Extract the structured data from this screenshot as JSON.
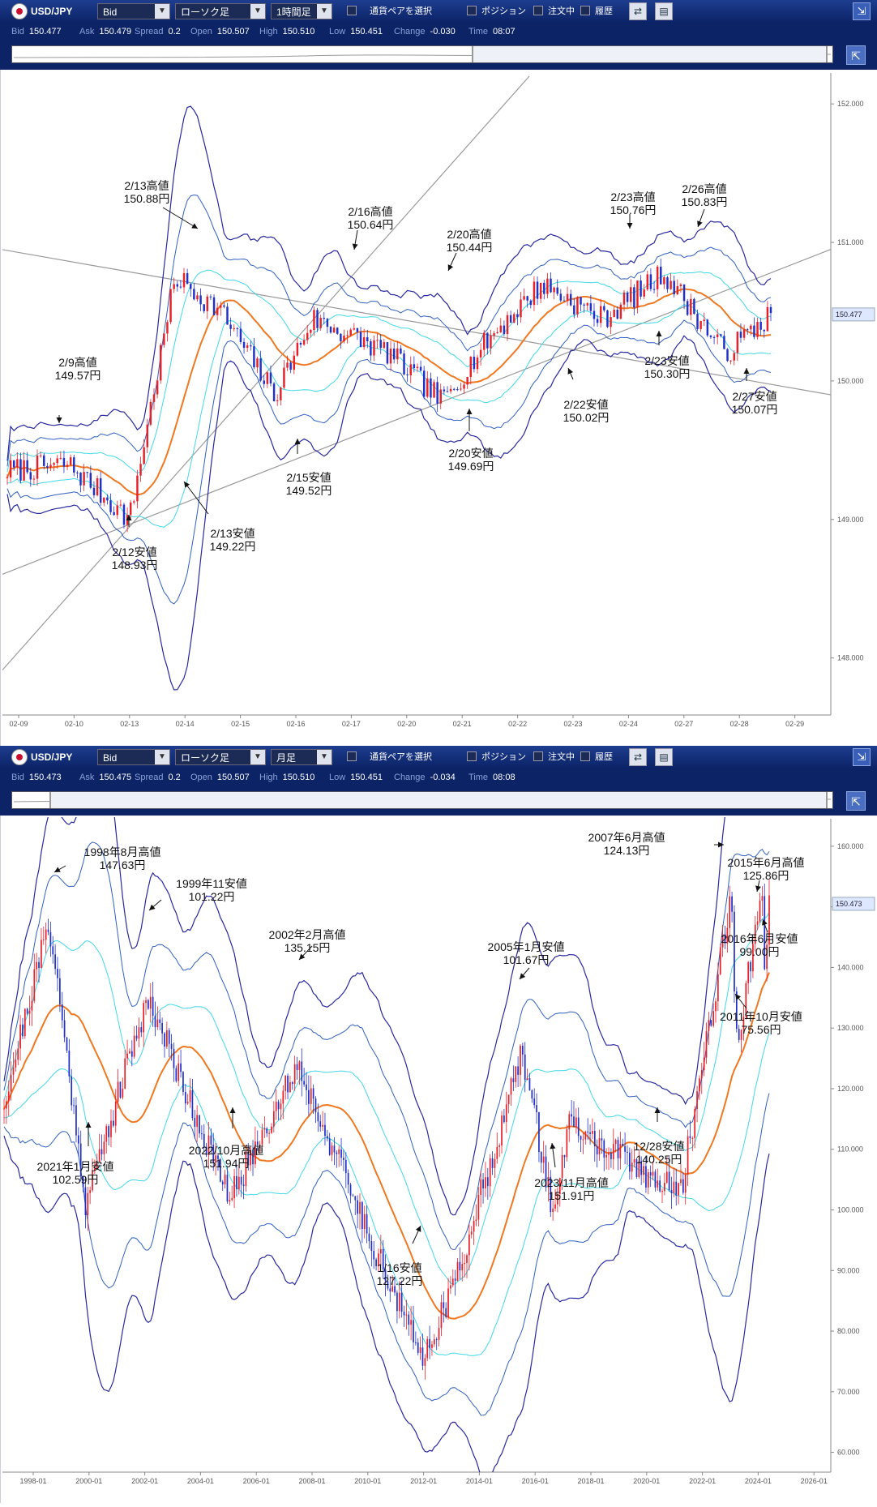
{
  "panels": [
    {
      "toolbar": {
        "pair": "USD/JPY",
        "price_type": "Bid",
        "chart_style": "ローソク足",
        "timeframe": "1時間足",
        "select_pairs": "通貨ペアを選択",
        "position": "ポジション",
        "orders": "注文中",
        "history": "履歴"
      },
      "status": {
        "bid_label": "Bid",
        "bid": "150.477",
        "ask_label": "Ask",
        "ask": "150.479",
        "spread_label": "Spread",
        "spread": "0.2",
        "open_label": "Open",
        "open": "150.507",
        "high_label": "High",
        "high": "150.510",
        "low_label": "Low",
        "low": "150.451",
        "change_label": "Change",
        "change": "-0.030",
        "time_label": "Time",
        "time": "08:07"
      },
      "navigator_thumb": [
        0.56,
        0.99
      ],
      "current_price": "150.477"
    },
    {
      "toolbar": {
        "pair": "USD/JPY",
        "price_type": "Bid",
        "chart_style": "ローソク足",
        "timeframe": "月足",
        "select_pairs": "通貨ペアを選択",
        "position": "ポジション",
        "orders": "注文中",
        "history": "履歴"
      },
      "status": {
        "bid_label": "Bid",
        "bid": "150.473",
        "ask_label": "Ask",
        "ask": "150.475",
        "spread_label": "Spread",
        "spread": "0.2",
        "open_label": "Open",
        "open": "150.507",
        "high_label": "High",
        "high": "150.510",
        "low_label": "Low",
        "low": "150.451",
        "change_label": "Change",
        "change": "-0.034",
        "time_label": "Time",
        "time": "08:08"
      },
      "navigator_thumb": [
        0.045,
        0.99
      ],
      "current_price": "150.473"
    }
  ],
  "chart_data": [
    {
      "type": "candlestick",
      "title": "",
      "xlabel": "",
      "ylabel": "",
      "x_ticks": [
        "02-09",
        "02-10",
        "02-13",
        "02-14",
        "02-15",
        "02-16",
        "02-17",
        "02-20",
        "02-21",
        "02-22",
        "02-23",
        "02-24",
        "02-27",
        "02-28",
        "02-29"
      ],
      "y_ticks": [
        "148.000",
        "149.000",
        "150.000",
        "151.000",
        "152.000"
      ],
      "ylim": [
        147.6,
        152.2
      ],
      "indicators": [
        "Bollinger Bands (±1σ, ±2σ, ±3σ)",
        "Moving Average"
      ],
      "colors": {
        "up": "#e8202a",
        "down": "#2030c8",
        "ma": "#f07820",
        "band1": "#40d8e8",
        "band2": "#3060c0",
        "band3": "#2828a0",
        "trend": "#999999"
      },
      "series": [
        {
          "name": "",
          "t": [
            0,
            0.08,
            0.16,
            0.22,
            0.28,
            0.35,
            0.4,
            0.5,
            0.57,
            0.63,
            0.7,
            0.78,
            0.86,
            0.94,
            1.0
          ],
          "close": [
            149.35,
            149.4,
            149.0,
            150.75,
            150.5,
            149.9,
            150.45,
            150.2,
            149.85,
            150.3,
            150.7,
            150.45,
            150.78,
            150.2,
            150.48
          ]
        }
      ],
      "annotations": [
        {
          "date": "2/9",
          "kind": "高値",
          "label": "2/9高値",
          "value": "149.57円"
        },
        {
          "date": "2/12",
          "kind": "安値",
          "label": "2/12安値",
          "value": "148.93円"
        },
        {
          "date": "2/13",
          "kind": "高値",
          "label": "2/13高値",
          "value": "150.88円"
        },
        {
          "date": "2/13",
          "kind": "安値",
          "label": "2/13安値",
          "value": "149.22円"
        },
        {
          "date": "2/15",
          "kind": "安値",
          "label": "2/15安値",
          "value": "149.52円"
        },
        {
          "date": "2/16",
          "kind": "高値",
          "label": "2/16高値",
          "value": "150.64円"
        },
        {
          "date": "2/20",
          "kind": "高値",
          "label": "2/20高値",
          "value": "150.44円"
        },
        {
          "date": "2/20",
          "kind": "安値",
          "label": "2/20安値",
          "value": "149.69円"
        },
        {
          "date": "2/22",
          "kind": "安値",
          "label": "2/22安値",
          "value": "150.02円"
        },
        {
          "date": "2/23",
          "kind": "高値",
          "label": "2/23高値",
          "value": "150.76円"
        },
        {
          "date": "2/23",
          "kind": "安値",
          "label": "2/23安値",
          "value": "150.30円"
        },
        {
          "date": "2/26",
          "kind": "高値",
          "label": "2/26高値",
          "value": "150.83円"
        },
        {
          "date": "2/27",
          "kind": "安値",
          "label": "2/27安値",
          "value": "150.07円"
        }
      ]
    },
    {
      "type": "candlestick",
      "title": "",
      "xlabel": "",
      "ylabel": "",
      "x_ticks": [
        "1998-01",
        "2000-01",
        "2002-01",
        "2004-01",
        "2006-01",
        "2008-01",
        "2010-01",
        "2012-01",
        "2014-01",
        "2016-01",
        "2018-01",
        "2020-01",
        "2022-01",
        "2024-01",
        "2026-01"
      ],
      "y_ticks": [
        "60.000",
        "70.000",
        "80.000",
        "90.000",
        "100.000",
        "110.000",
        "120.000",
        "130.000",
        "140.000",
        "150.000",
        "160.000"
      ],
      "ylim": [
        57,
        164
      ],
      "indicators": [
        "Bollinger Bands (±1σ, ±2σ, ±3σ)",
        "Moving Average"
      ],
      "colors": {
        "up": "#e8202a",
        "down": "#2030c8",
        "ma": "#f07820",
        "band1": "#40d8e8",
        "band2": "#3060c0",
        "band3": "#2828a0"
      },
      "series": [
        {
          "name": "",
          "t": [
            1997.0,
            1998.6,
            1999.9,
            2002.1,
            2005.0,
            2007.4,
            2011.8,
            2012.9,
            2015.4,
            2016.5,
            2017.0,
            2021.0,
            2022.8,
            2023.0,
            2023.9,
            2024.0,
            2024.15
          ],
          "close": [
            118,
            147.6,
            101.2,
            135.2,
            101.7,
            124.1,
            75.6,
            86.5,
            125.9,
            99.0,
            114,
            102.6,
            151.9,
            127.2,
            151.9,
            140.3,
            150.5
          ]
        }
      ],
      "annotations": [
        {
          "date": "1998年8月",
          "kind": "高値",
          "label": "1998年8月高値",
          "value": "147.63円"
        },
        {
          "date": "1999年11月",
          "kind": "安値",
          "label": "1999年11安値",
          "value": "101.22円"
        },
        {
          "date": "2002年2月",
          "kind": "高値",
          "label": "2002年2月高値",
          "value": "135.15円"
        },
        {
          "date": "2005年1月",
          "kind": "安値",
          "label": "2005年1月安値",
          "value": "101.67円"
        },
        {
          "date": "2007年6月",
          "kind": "高値",
          "label": "2007年6月高値",
          "value": "124.13円"
        },
        {
          "date": "2011年10月",
          "kind": "安値",
          "label": "2011年10月安値",
          "value": "75.56円"
        },
        {
          "date": "2015年6月",
          "kind": "高値",
          "label": "2015年6月高値",
          "value": "125.86円"
        },
        {
          "date": "2016年6月",
          "kind": "安値",
          "label": "2016年6月安値",
          "value": "99.00円"
        },
        {
          "date": "2021年1月",
          "kind": "安値",
          "label": "2021年1月安値",
          "value": "102.59円"
        },
        {
          "date": "2022年10月",
          "kind": "高値",
          "label": "2022/10月高値",
          "value": "151.94円"
        },
        {
          "date": "2023年1月",
          "kind": "安値",
          "label": "1/16安値",
          "value": "127.22円"
        },
        {
          "date": "2023年11月",
          "kind": "高値",
          "label": "2023/11月高値",
          "value": "151.91円"
        },
        {
          "date": "2023年12月",
          "kind": "安値",
          "label": "12/28安値",
          "value": "140.25円"
        }
      ]
    }
  ]
}
